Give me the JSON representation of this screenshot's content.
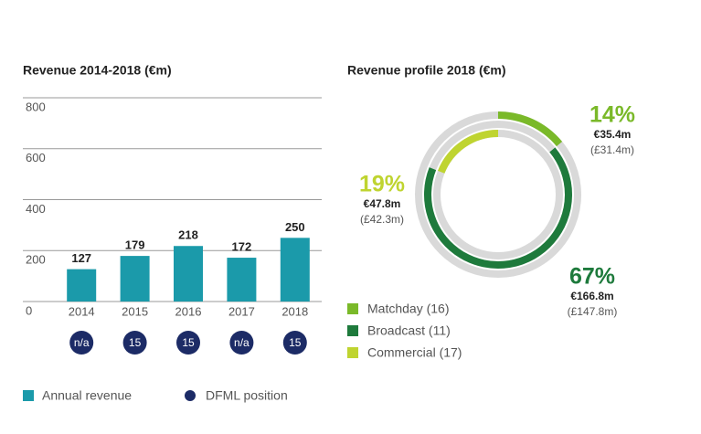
{
  "chart_data": [
    {
      "type": "bar",
      "title": "Revenue 2014-2018 (€m)",
      "categories": [
        "2014",
        "2015",
        "2016",
        "2017",
        "2018"
      ],
      "series": [
        {
          "name": "Annual revenue",
          "color": "#1b9aaa",
          "values": [
            127,
            179,
            218,
            172,
            250
          ]
        }
      ],
      "positions": {
        "name": "DFML position",
        "color": "#1c2b66",
        "labels": [
          "n/a",
          "15",
          "15",
          "n/a",
          "15"
        ]
      },
      "ylim": [
        0,
        800
      ],
      "yticks": [
        0,
        200,
        400,
        600,
        800
      ],
      "grid": true
    },
    {
      "type": "radial",
      "title": "Revenue profile 2018 (€m)",
      "series": [
        {
          "name": "Matchday (16)",
          "color": "#7ab929",
          "values": [
            14
          ],
          "value_labels": [
            "14%"
          ],
          "eur": "€35.4m",
          "gbp": "(£31.4m)"
        },
        {
          "name": "Broadcast (11)",
          "color": "#1e7a3c",
          "values": [
            67
          ],
          "value_labels": [
            "67%"
          ],
          "eur": "€166.8m",
          "gbp": "(£147.8m)"
        },
        {
          "name": "Commercial (17)",
          "color": "#bfd430",
          "values": [
            19
          ],
          "value_labels": [
            "19%"
          ],
          "eur": "€47.8m",
          "gbp": "(£42.3m)"
        }
      ],
      "track_color": "#d9d9d9"
    }
  ]
}
